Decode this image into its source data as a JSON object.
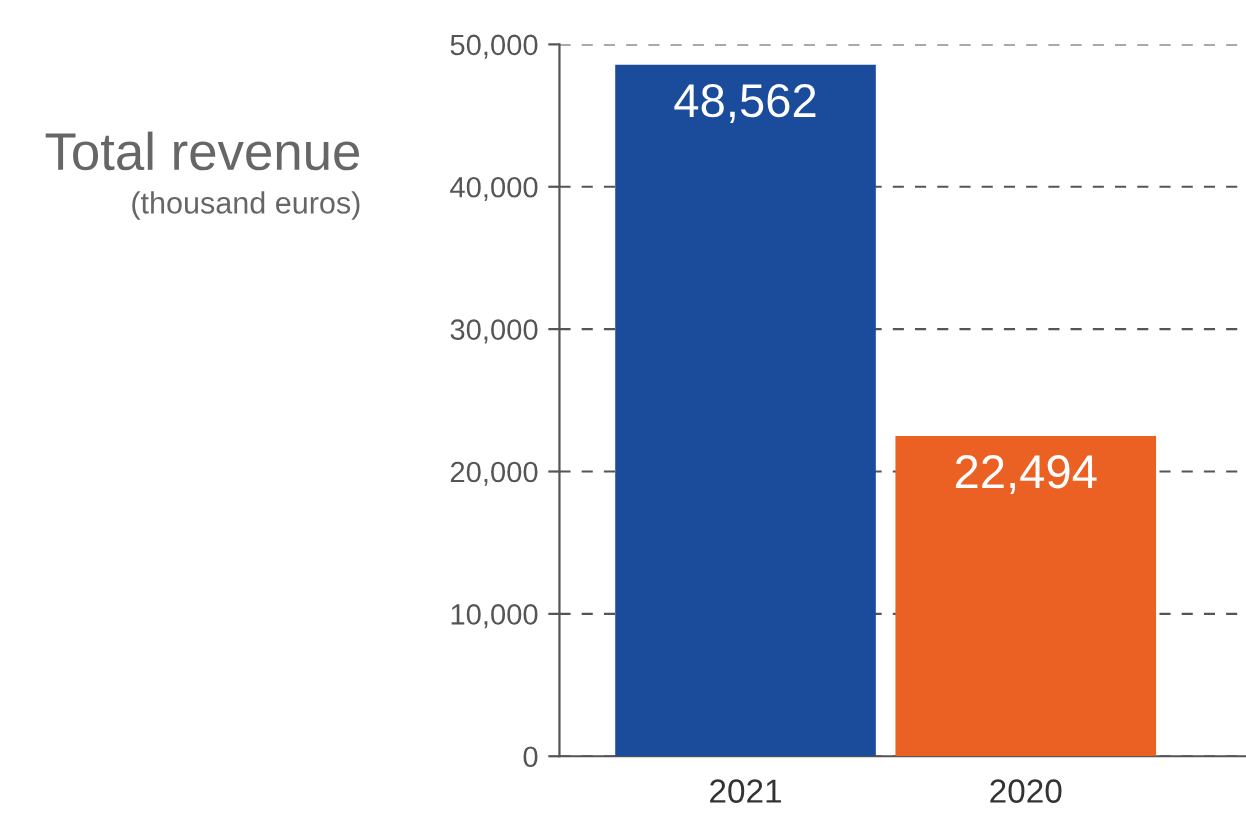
{
  "chart_data": {
    "type": "bar",
    "title": "Total revenue",
    "subtitle": "(thousand euros)",
    "categories": [
      "2021",
      "2020"
    ],
    "values": [
      48562,
      22494
    ],
    "colors": [
      "#1a4c9b",
      "#eb6124"
    ],
    "value_labels": [
      "48,562",
      "22,494"
    ],
    "ylim": [
      0,
      50000
    ],
    "yticks": [
      0,
      {
        "value": 10000,
        "label": "10,000"
      },
      {
        "value": 20000,
        "label": "20,000"
      },
      {
        "value": 30000,
        "label": "30,000"
      },
      {
        "value": 40000,
        "label": "40,000"
      },
      {
        "value": 50000,
        "label": "50,000"
      }
    ],
    "grid": "y",
    "line_style": "dashed",
    "legend": false
  }
}
